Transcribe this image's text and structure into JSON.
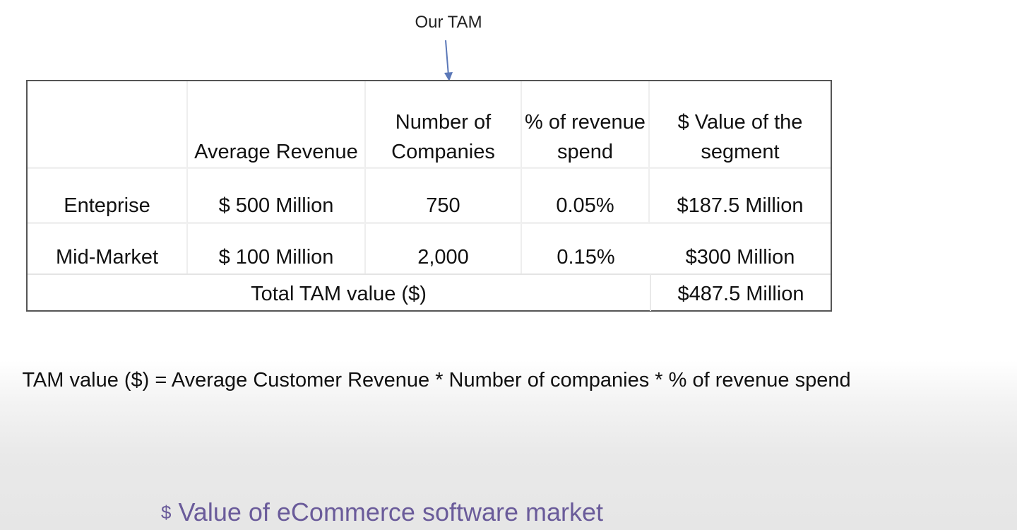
{
  "annotation": {
    "label": "Our TAM"
  },
  "table": {
    "headers": {
      "segment": "",
      "avg_revenue": "Average Revenue",
      "num_companies": "Number of Companies",
      "pct_spend": "% of revenue spend",
      "segment_value": "$ Value of the segment"
    },
    "rows": [
      {
        "segment": "Enteprise",
        "avg_revenue": "$ 500 Million",
        "num_companies": "750",
        "pct_spend": "0.05%",
        "segment_value": "$187.5 Million"
      },
      {
        "segment": "Mid-Market",
        "avg_revenue": "$ 100 Million",
        "num_companies": "2,000",
        "pct_spend": "0.15%",
        "segment_value": "$300 Million"
      }
    ],
    "total": {
      "label": "Total TAM value ($)",
      "value": "$487.5 Million"
    }
  },
  "formula": {
    "text": "TAM value ($)  =  Average Customer Revenue * Number of companies * % of revenue spend"
  },
  "bottom_title": {
    "icon": "dollar-sign",
    "symbol": "$",
    "text": "Value of eCommerce software market"
  },
  "colors": {
    "title_purple": "#6a5b9a",
    "arrow_blue": "#5b78b8"
  }
}
